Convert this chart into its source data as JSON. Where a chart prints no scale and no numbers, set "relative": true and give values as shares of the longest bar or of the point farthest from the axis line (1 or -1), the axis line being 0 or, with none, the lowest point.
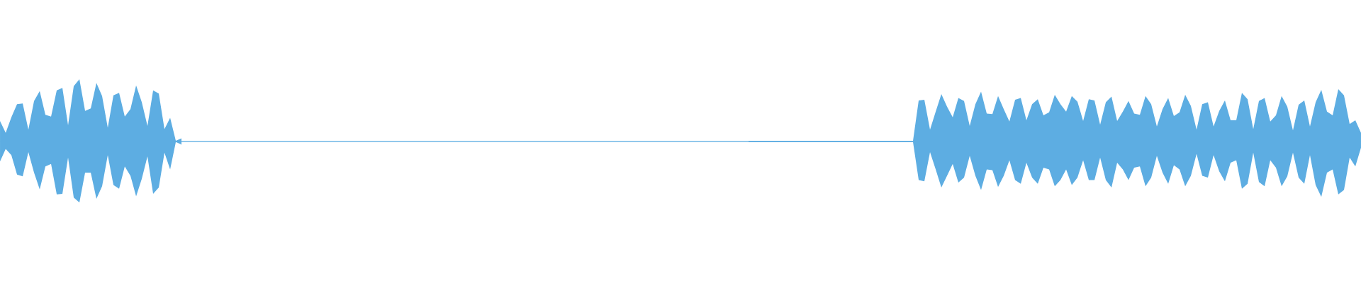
{
  "chart_data": {
    "type": "area",
    "relative": true,
    "categories": [
      null,
      null,
      null,
      null,
      null,
      null,
      null,
      null,
      null,
      null,
      null,
      null,
      null,
      null,
      null,
      null,
      null,
      null,
      null,
      null,
      null,
      null,
      null,
      null,
      null,
      null,
      null,
      null,
      null,
      null,
      null,
      null,
      null,
      null,
      null,
      null,
      null,
      null,
      null,
      null,
      null,
      null,
      null,
      null,
      null,
      null,
      null,
      null,
      null,
      null,
      null,
      null,
      null,
      null,
      null,
      null,
      null,
      null,
      null,
      null,
      null,
      null,
      null,
      null,
      null,
      null,
      null,
      null,
      null,
      null,
      null,
      null,
      null,
      null,
      null,
      null,
      null,
      null,
      null,
      null,
      null,
      null,
      null,
      null,
      null,
      null,
      null,
      null,
      null,
      null,
      null,
      null,
      null,
      null,
      null,
      null,
      null,
      null,
      null,
      null,
      null,
      null,
      null,
      null,
      null,
      null,
      null,
      null,
      null,
      null,
      null,
      null,
      null,
      null,
      null,
      null,
      null,
      null,
      null,
      null,
      null,
      null,
      null,
      null,
      null,
      null,
      null,
      null,
      null,
      null,
      null,
      null,
      null,
      null,
      null,
      null,
      null,
      null,
      null,
      null,
      null,
      null,
      null,
      null,
      null,
      null,
      null,
      null,
      null,
      null,
      null,
      null,
      null,
      null,
      null,
      null,
      null,
      null,
      null,
      null,
      null,
      null,
      null,
      null,
      null,
      null,
      null,
      null,
      null,
      null,
      null,
      null,
      null,
      null,
      null,
      null,
      null,
      null,
      null,
      null,
      null,
      null,
      null,
      null,
      null,
      null,
      null,
      null,
      null,
      null,
      null,
      null,
      null,
      null,
      null,
      null,
      null,
      null,
      null,
      null,
      null,
      null,
      null,
      null,
      null,
      null,
      null,
      null,
      null,
      null,
      null,
      null,
      null,
      null,
      null,
      null,
      null,
      null,
      null,
      null,
      null,
      null,
      null,
      null,
      null,
      null,
      null,
      null,
      null,
      null,
      null,
      null,
      null,
      null,
      null,
      null,
      null,
      null,
      null,
      null,
      null
    ],
    "series": [
      {
        "color": "#5dade2",
        "values": [
          0.33,
          0.14,
          0.39,
          0.6,
          0.61,
          0.19,
          0.65,
          0.81,
          0.43,
          0.4,
          0.82,
          0.86,
          0.26,
          0.89,
          1.0,
          0.49,
          0.53,
          0.94,
          0.73,
          0.22,
          0.74,
          0.78,
          0.4,
          0.52,
          0.9,
          0.63,
          0.25,
          0.82,
          0.77,
          0.2,
          0.38,
          0.01,
          0.05,
          null,
          null,
          null,
          null,
          null,
          null,
          null,
          null,
          null,
          null,
          null,
          null,
          null,
          null,
          null,
          null,
          null,
          null,
          null,
          null,
          null,
          null,
          null,
          null,
          null,
          null,
          null,
          null,
          null,
          null,
          null,
          null,
          null,
          null,
          null,
          null,
          null,
          null,
          null,
          null,
          null,
          null,
          null,
          null,
          null,
          null,
          null,
          null,
          null,
          null,
          null,
          null,
          null,
          null,
          null,
          null,
          null,
          null,
          null,
          null,
          null,
          null,
          null,
          null,
          null,
          null,
          null,
          null,
          null,
          null,
          null,
          null,
          null,
          null,
          null,
          null,
          null,
          null,
          null,
          null,
          null,
          null,
          null,
          null,
          null,
          null,
          null,
          null,
          null,
          null,
          null,
          null,
          null,
          null,
          null,
          null,
          null,
          null,
          null,
          0.01,
          0.01,
          0.01,
          0.01,
          0.01,
          0.01,
          0.01,
          0.01,
          0.01,
          0.01,
          0.01,
          0.01,
          0.01,
          0.01,
          0.01,
          0.01,
          0.01,
          0.01,
          0.01,
          0.01,
          0.01,
          0.01,
          0.01,
          0.01,
          0.01,
          0.01,
          0.01,
          0.01,
          0.01,
          0.01,
          0.66,
          0.67,
          0.19,
          0.48,
          0.76,
          0.56,
          0.39,
          0.7,
          0.65,
          0.25,
          0.6,
          0.8,
          0.45,
          0.44,
          0.73,
          0.52,
          0.32,
          0.67,
          0.7,
          0.34,
          0.6,
          0.68,
          0.42,
          0.47,
          0.75,
          0.6,
          0.48,
          0.73,
          0.64,
          0.33,
          0.68,
          0.66,
          0.27,
          0.63,
          0.72,
          0.33,
          0.48,
          0.65,
          0.45,
          0.43,
          0.73,
          0.6,
          0.24,
          0.52,
          0.7,
          0.41,
          0.47,
          0.75,
          0.57,
          0.19,
          0.6,
          0.63,
          0.24,
          0.49,
          0.66,
          0.34,
          0.34,
          0.78,
          0.68,
          0.2,
          0.65,
          0.7,
          0.32,
          0.42,
          0.73,
          0.56,
          0.18,
          0.59,
          0.66,
          0.24,
          0.63,
          0.83,
          0.48,
          0.42,
          0.84,
          0.74,
          0.28,
          0.34,
          0.14
        ]
      },
      {
        "color": "#5dade2",
        "values": [
          -0.32,
          -0.12,
          -0.22,
          -0.53,
          -0.56,
          -0.17,
          -0.5,
          -0.77,
          -0.4,
          -0.36,
          -0.85,
          -0.84,
          -0.26,
          -0.9,
          -0.98,
          -0.5,
          -0.5,
          -0.92,
          -0.72,
          -0.22,
          -0.7,
          -0.76,
          -0.4,
          -0.55,
          -0.88,
          -0.6,
          -0.24,
          -0.84,
          -0.74,
          -0.18,
          -0.45,
          -0.01,
          -0.05,
          null,
          null,
          null,
          null,
          null,
          null,
          null,
          null,
          null,
          null,
          null,
          null,
          null,
          null,
          null,
          null,
          null,
          null,
          null,
          null,
          null,
          null,
          null,
          null,
          null,
          null,
          null,
          null,
          null,
          null,
          null,
          null,
          null,
          null,
          null,
          null,
          null,
          null,
          null,
          null,
          null,
          null,
          null,
          null,
          null,
          null,
          null,
          null,
          null,
          null,
          null,
          null,
          null,
          null,
          null,
          null,
          null,
          null,
          null,
          null,
          null,
          null,
          null,
          null,
          null,
          null,
          null,
          null,
          null,
          null,
          null,
          null,
          null,
          null,
          null,
          null,
          null,
          null,
          null,
          null,
          null,
          null,
          null,
          null,
          null,
          null,
          null,
          null,
          null,
          null,
          null,
          null,
          null,
          null,
          null,
          null,
          null,
          null,
          null,
          -0.01,
          -0.01,
          -0.01,
          -0.01,
          -0.01,
          -0.01,
          -0.01,
          -0.01,
          -0.01,
          -0.01,
          -0.01,
          -0.01,
          -0.01,
          -0.01,
          -0.01,
          -0.01,
          -0.01,
          -0.01,
          -0.01,
          -0.01,
          -0.01,
          -0.01,
          -0.01,
          -0.01,
          -0.01,
          -0.01,
          -0.01,
          -0.01,
          -0.01,
          -0.01,
          -0.62,
          -0.64,
          -0.17,
          -0.45,
          -0.74,
          -0.55,
          -0.36,
          -0.66,
          -0.58,
          -0.23,
          -0.55,
          -0.78,
          -0.45,
          -0.46,
          -0.73,
          -0.55,
          -0.3,
          -0.62,
          -0.68,
          -0.34,
          -0.58,
          -0.68,
          -0.42,
          -0.45,
          -0.72,
          -0.62,
          -0.45,
          -0.7,
          -0.58,
          -0.3,
          -0.62,
          -0.62,
          -0.26,
          -0.62,
          -0.74,
          -0.34,
          -0.45,
          -0.62,
          -0.42,
          -0.4,
          -0.72,
          -0.58,
          -0.23,
          -0.5,
          -0.68,
          -0.38,
          -0.45,
          -0.72,
          -0.55,
          -0.2,
          -0.55,
          -0.58,
          -0.22,
          -0.48,
          -0.64,
          -0.34,
          -0.3,
          -0.76,
          -0.68,
          -0.18,
          -0.65,
          -0.72,
          -0.3,
          -0.42,
          -0.72,
          -0.56,
          -0.18,
          -0.58,
          -0.68,
          -0.22,
          -0.7,
          -0.89,
          -0.5,
          -0.45,
          -0.85,
          -0.78,
          -0.26,
          -0.4,
          -0.1
        ]
      }
    ],
    "ref_lines": [
      {
        "axis": "y",
        "value": 0,
        "color": "#5dade2"
      }
    ]
  }
}
